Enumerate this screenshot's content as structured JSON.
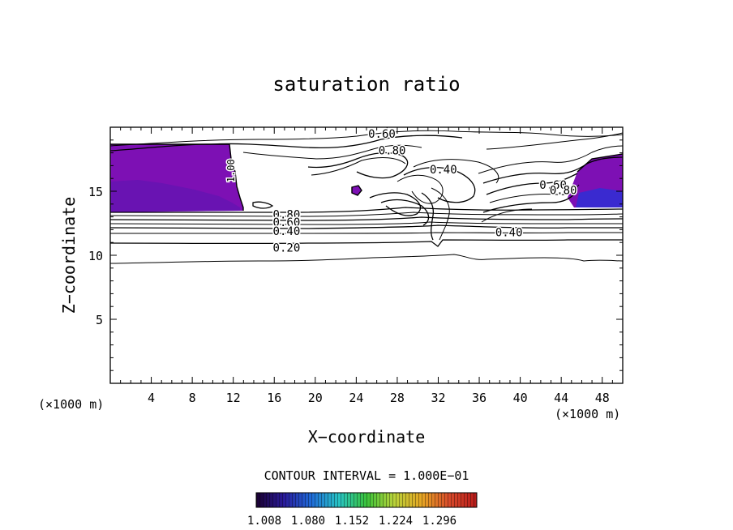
{
  "chart_data": {
    "type": "contour",
    "title": "saturation ratio",
    "xlabel": "X−coordinate",
    "ylabel": "Z−coordinate",
    "x_unit_left": "(×1000 m)",
    "x_unit_right": "(×1000 m)",
    "xlim": [
      0,
      50
    ],
    "ylim": [
      0,
      20
    ],
    "x_ticks": [
      4,
      8,
      12,
      16,
      20,
      24,
      28,
      32,
      36,
      40,
      44,
      48
    ],
    "y_ticks": [
      5,
      10,
      15
    ],
    "contour_interval_text": "CONTOUR INTERVAL = 1.000E−01",
    "contour_labels": [
      {
        "text": "0.60",
        "x": 26.5,
        "z": 19.5
      },
      {
        "text": "0.80",
        "x": 27.5,
        "z": 18.2
      },
      {
        "text": "0.40",
        "x": 32.5,
        "z": 16.7
      },
      {
        "text": "1.00",
        "x": 11.7,
        "z": 16.6
      },
      {
        "text": "0.80",
        "x": 17.2,
        "z": 13.2
      },
      {
        "text": "0.60",
        "x": 17.2,
        "z": 12.6
      },
      {
        "text": "0.40",
        "x": 17.2,
        "z": 11.9
      },
      {
        "text": "0.20",
        "x": 17.2,
        "z": 10.6
      },
      {
        "text": "0.60",
        "x": 43.2,
        "z": 15.5
      },
      {
        "text": "0.80",
        "x": 44.2,
        "z": 15.1
      },
      {
        "text": "0.40",
        "x": 38.9,
        "z": 11.8
      }
    ],
    "colorbar": {
      "labels": [
        "1.008",
        "1.080",
        "1.152",
        "1.224",
        "1.296"
      ],
      "colors": [
        "#1a0030",
        "#2a1a9a",
        "#1e6ad8",
        "#27c4c4",
        "#3ac23a",
        "#b8d23a",
        "#e6a623",
        "#d84a2a",
        "#b81a1a"
      ]
    },
    "fill_color": "#7d10b4",
    "fill_color_dark": "#5a16b0",
    "fill_color_blue": "#3a2ad0"
  }
}
